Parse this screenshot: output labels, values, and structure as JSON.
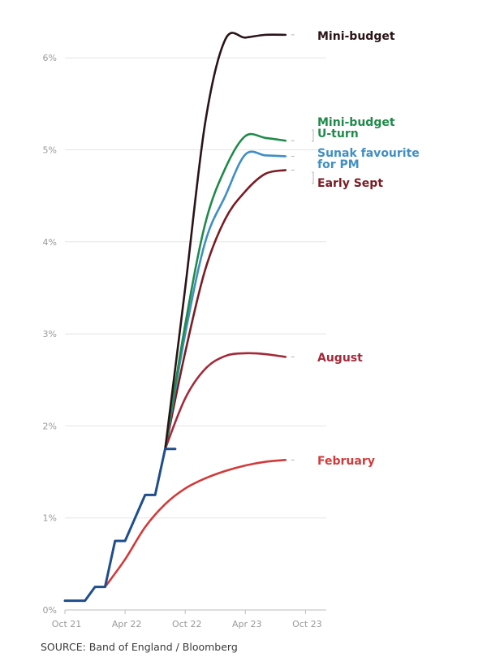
{
  "source": "SOURCE: Band of England / Bloomberg",
  "chart_data": {
    "type": "line",
    "title": "",
    "xlabel": "",
    "ylabel": "",
    "x_ticks": [
      "Oct 21",
      "Apr 22",
      "Oct 22",
      "Apr 23",
      "Oct 23"
    ],
    "y_ticks": [
      "0%",
      "1%",
      "2%",
      "3%",
      "4%",
      "5%",
      "6%"
    ],
    "ylim": [
      0,
      6.6
    ],
    "grid": "horizontal",
    "history": {
      "name": "",
      "color": "#1f4e8c",
      "points": [
        [
          "2021-10",
          0.1
        ],
        [
          "2021-12",
          0.1
        ],
        [
          "2022-01",
          0.25
        ],
        [
          "2022-02",
          0.25
        ],
        [
          "2022-03",
          0.75
        ],
        [
          "2022-04",
          0.75
        ],
        [
          "2022-05",
          1.0
        ],
        [
          "2022-06",
          1.25
        ],
        [
          "2022-07",
          1.25
        ],
        [
          "2022-08",
          1.75
        ],
        [
          "2022-09",
          1.75
        ]
      ]
    },
    "series": [
      {
        "name": "February",
        "label": "February",
        "color": "#d23a3a",
        "points": [
          [
            "2022-02",
            0.25
          ],
          [
            "2022-04",
            0.55
          ],
          [
            "2022-06",
            0.9
          ],
          [
            "2022-08",
            1.15
          ],
          [
            "2022-10",
            1.32
          ],
          [
            "2022-12",
            1.43
          ],
          [
            "2023-02",
            1.51
          ],
          [
            "2023-04",
            1.57
          ],
          [
            "2023-06",
            1.61
          ],
          [
            "2023-08",
            1.63
          ]
        ]
      },
      {
        "name": "August",
        "label": "August",
        "color": "#a32a3a",
        "points": [
          [
            "2022-08",
            1.75
          ],
          [
            "2022-10",
            2.3
          ],
          [
            "2022-12",
            2.62
          ],
          [
            "2023-02",
            2.76
          ],
          [
            "2023-04",
            2.79
          ],
          [
            "2023-06",
            2.78
          ],
          [
            "2023-08",
            2.75
          ]
        ]
      },
      {
        "name": "Early Sept",
        "label": "Early Sept",
        "color": "#7a1c24",
        "points": [
          [
            "2022-08",
            1.75
          ],
          [
            "2022-10",
            2.8
          ],
          [
            "2022-12",
            3.7
          ],
          [
            "2023-02",
            4.25
          ],
          [
            "2023-04",
            4.55
          ],
          [
            "2023-06",
            4.74
          ],
          [
            "2023-08",
            4.78
          ]
        ]
      },
      {
        "name": "Sunak favourite for PM",
        "label": [
          "Sunak favourite",
          "for PM"
        ],
        "color": "#3f8fc4",
        "points": [
          [
            "2022-08",
            1.75
          ],
          [
            "2022-10",
            3.0
          ],
          [
            "2022-12",
            4.0
          ],
          [
            "2023-02",
            4.5
          ],
          [
            "2023-04",
            4.95
          ],
          [
            "2023-06",
            4.94
          ],
          [
            "2023-08",
            4.93
          ]
        ]
      },
      {
        "name": "Mini-budget U-turn",
        "label": [
          "Mini-budget",
          "U-turn"
        ],
        "color": "#1f8a4a",
        "points": [
          [
            "2022-08",
            1.75
          ],
          [
            "2022-10",
            3.1
          ],
          [
            "2022-12",
            4.2
          ],
          [
            "2023-02",
            4.8
          ],
          [
            "2023-04",
            5.15
          ],
          [
            "2023-06",
            5.13
          ],
          [
            "2023-08",
            5.1
          ]
        ]
      },
      {
        "name": "Mini-budget",
        "label": "Mini-budget",
        "color": "#2a1418",
        "points": [
          [
            "2022-08",
            1.75
          ],
          [
            "2022-10",
            3.5
          ],
          [
            "2022-12",
            5.3
          ],
          [
            "2023-02",
            6.2
          ],
          [
            "2023-04",
            6.22
          ],
          [
            "2023-06",
            6.25
          ],
          [
            "2023-08",
            6.25
          ]
        ]
      }
    ]
  }
}
